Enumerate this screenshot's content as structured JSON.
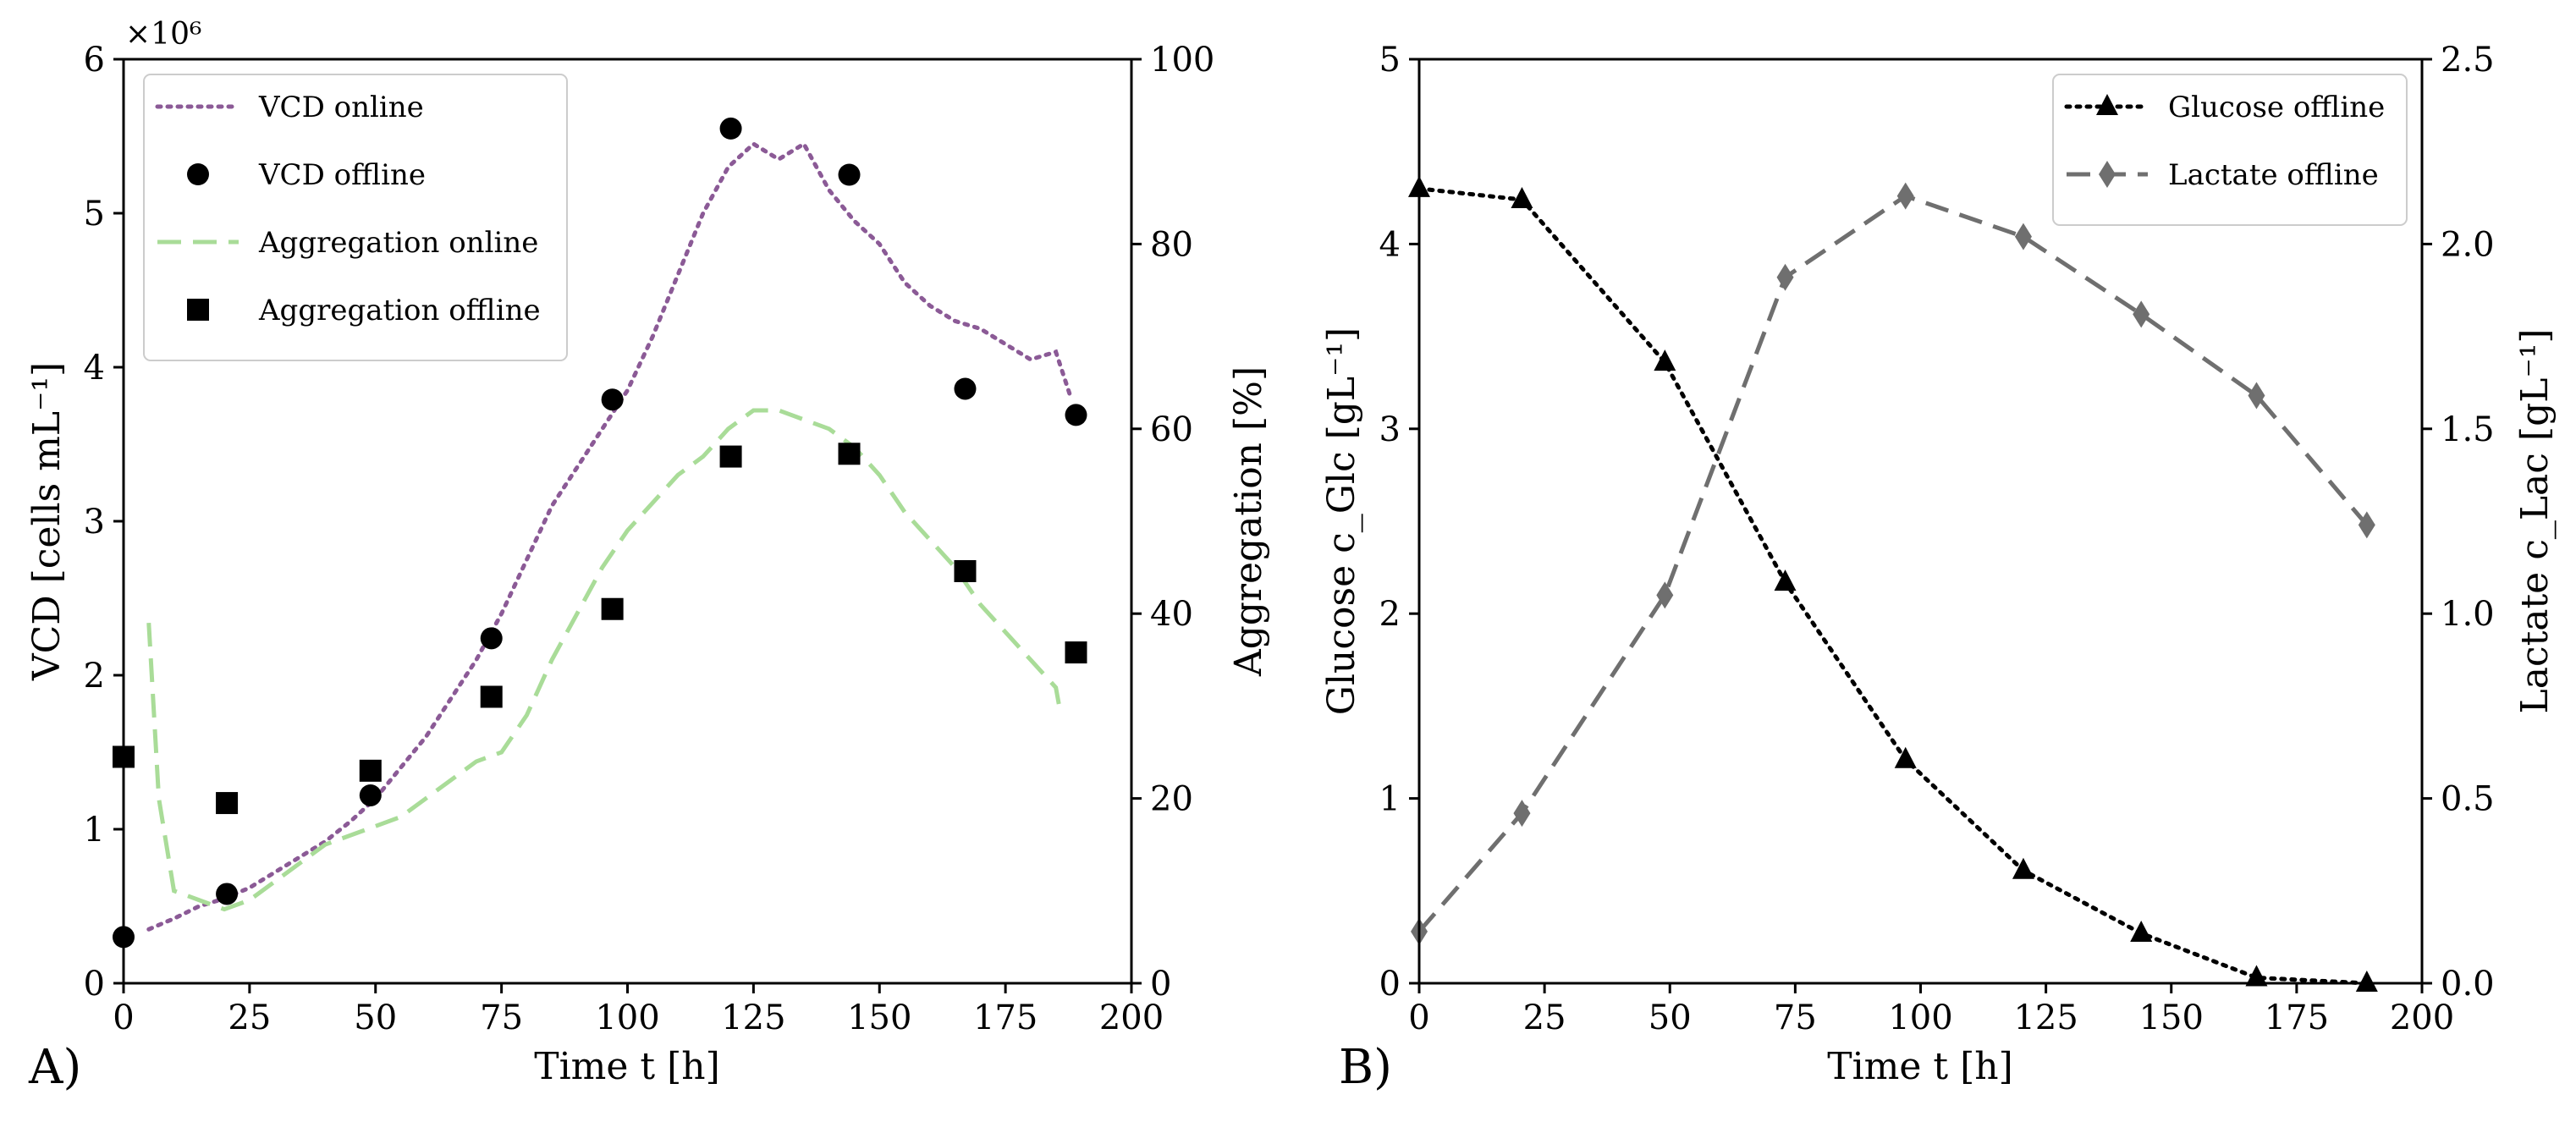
{
  "chart_data": [
    {
      "type": "line",
      "panel_label": "A)",
      "xlabel": "Time t [h]",
      "ylabel": "VCD [cells mL⁻¹]",
      "ylabel_right": "Aggregation [%]",
      "y_exponent": "×10⁶",
      "xlim": [
        0,
        200
      ],
      "ylim": [
        0,
        6
      ],
      "ylim_right": [
        0,
        100
      ],
      "x_ticks": [
        0,
        25,
        50,
        75,
        100,
        125,
        150,
        175,
        200
      ],
      "y_ticks": [
        0,
        1,
        2,
        3,
        4,
        5,
        6
      ],
      "y_ticks_right": [
        0,
        20,
        40,
        60,
        80,
        100
      ],
      "legend_position": "top-left",
      "series": [
        {
          "name": "VCD online",
          "axis": "left",
          "style": "dotted",
          "color": "#8b5a96",
          "x": [
            5,
            10,
            15,
            20,
            25,
            30,
            35,
            40,
            45,
            50,
            55,
            60,
            65,
            70,
            75,
            80,
            85,
            90,
            95,
            100,
            105,
            110,
            115,
            120,
            125,
            130,
            135,
            140,
            145,
            150,
            155,
            160,
            165,
            170,
            175,
            180,
            185,
            188
          ],
          "y": [
            0.35,
            0.42,
            0.5,
            0.55,
            0.62,
            0.72,
            0.82,
            0.92,
            1.05,
            1.2,
            1.4,
            1.6,
            1.85,
            2.1,
            2.4,
            2.75,
            3.1,
            3.35,
            3.6,
            3.85,
            4.2,
            4.6,
            5.0,
            5.3,
            5.45,
            5.35,
            5.45,
            5.15,
            4.95,
            4.8,
            4.55,
            4.4,
            4.3,
            4.25,
            4.15,
            4.05,
            4.1,
            3.8
          ]
        },
        {
          "name": "VCD offline",
          "axis": "left",
          "style": "markers-circle",
          "color": "#000000",
          "x": [
            0,
            20.5,
            49,
            73,
            97,
            120.5,
            144,
            167,
            189
          ],
          "y": [
            0.3,
            0.58,
            1.22,
            2.24,
            3.79,
            5.55,
            5.25,
            3.86,
            3.69
          ]
        },
        {
          "name": "Aggregation online",
          "axis": "right",
          "style": "dashed",
          "color": "#a9dc98",
          "x": [
            5,
            7,
            10,
            15,
            20,
            25,
            30,
            35,
            40,
            45,
            50,
            55,
            60,
            65,
            70,
            75,
            80,
            85,
            90,
            95,
            100,
            105,
            110,
            115,
            120,
            125,
            130,
            135,
            140,
            145,
            150,
            155,
            160,
            165,
            170,
            175,
            180,
            185,
            186
          ],
          "y": [
            39,
            20,
            10,
            9,
            8,
            9,
            11,
            13,
            15,
            16,
            17,
            18,
            20,
            22,
            24,
            25,
            29,
            35,
            40,
            45,
            49,
            52,
            55,
            57,
            60,
            62,
            62,
            61,
            60,
            58,
            55,
            51,
            48,
            45,
            41,
            38,
            35,
            32,
            29
          ]
        },
        {
          "name": "Aggregation offline",
          "axis": "right",
          "style": "markers-square",
          "color": "#000000",
          "x": [
            0,
            20.5,
            49,
            73,
            97,
            120.5,
            144,
            167,
            189
          ],
          "y": [
            24.5,
            19.5,
            23,
            31,
            40.5,
            57,
            57.3,
            44.6,
            35.8
          ]
        }
      ]
    },
    {
      "type": "line",
      "panel_label": "B)",
      "xlabel": "Time t [h]",
      "ylabel": "Glucose c_Glc [gL⁻¹]",
      "ylabel_right": "Lactate c_Lac [gL⁻¹]",
      "xlim": [
        0,
        200
      ],
      "ylim": [
        0,
        5
      ],
      "ylim_right": [
        0,
        2.5
      ],
      "x_ticks": [
        0,
        25,
        50,
        75,
        100,
        125,
        150,
        175,
        200
      ],
      "y_ticks": [
        0,
        1,
        2,
        3,
        4,
        5
      ],
      "y_ticks_right": [
        0.0,
        0.5,
        1.0,
        1.5,
        2.0,
        2.5
      ],
      "legend_position": "top-right",
      "series": [
        {
          "name": "Glucose offline",
          "axis": "left",
          "style": "dotted-triangle",
          "color": "#000000",
          "x": [
            0,
            20.5,
            49,
            73,
            97,
            120.5,
            144,
            167,
            189
          ],
          "y": [
            4.3,
            4.24,
            3.36,
            2.17,
            1.21,
            0.61,
            0.27,
            0.03,
            0.0
          ]
        },
        {
          "name": "Lactate offline",
          "axis": "right",
          "style": "dashed-diamond",
          "color": "#6f6f6f",
          "x": [
            0,
            20.5,
            49,
            73,
            97,
            120.5,
            144,
            167,
            189
          ],
          "y": [
            0.14,
            0.46,
            1.05,
            1.91,
            2.13,
            2.02,
            1.81,
            1.59,
            1.24
          ]
        }
      ]
    }
  ]
}
